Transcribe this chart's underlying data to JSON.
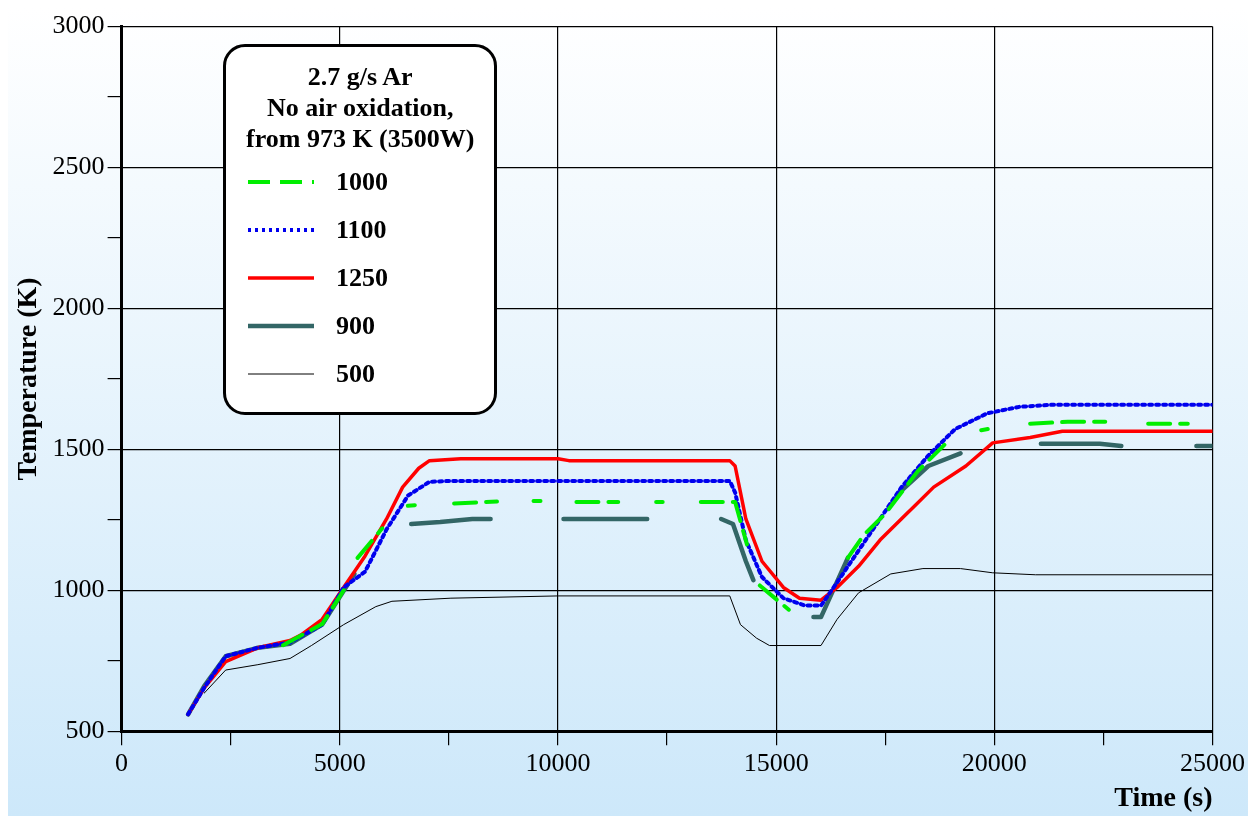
{
  "chart_data": {
    "type": "line",
    "xlabel": "Time (s)",
    "ylabel": "Temperature (K)",
    "legend_title": "2.7 g/s Ar\nNo air oxidation,\nfrom 973 K (3500W)",
    "legend": "top left",
    "grid": true,
    "marker": "none",
    "xlim": [
      0,
      25000
    ],
    "xticks": [
      0,
      {
        "value": 2500,
        "label": null
      },
      5000,
      {
        "value": 7500,
        "label": null
      },
      10000,
      {
        "value": 12500,
        "label": null
      },
      15000,
      {
        "value": 17500,
        "label": null
      },
      20000,
      {
        "value": 22500,
        "label": null
      },
      25000
    ],
    "ylim": [
      500,
      3000
    ],
    "yticks": [
      500,
      {
        "value": 750,
        "label": null
      },
      1000,
      {
        "value": 1250,
        "label": null
      },
      1500,
      {
        "value": 1750,
        "label": null
      },
      2000,
      {
        "value": 2250,
        "label": null
      },
      2500,
      {
        "value": 2750,
        "label": null
      },
      3000
    ],
    "series": [
      {
        "name": "1000",
        "color": "#00ee00",
        "line_style": "dashed",
        "x": [
          3700,
          4597,
          5088,
          5250,
          5408,
          5974,
          6300,
          6560,
          6720,
          7000,
          7620,
          8603,
          9000,
          9440,
          9600,
          9900,
          10423,
          11381,
          11800,
          12250,
          12400,
          12800,
          13274,
          14060,
          14331,
          14500,
          14626,
          15290,
          16000,
          16643,
          17012,
          17504,
          18241,
          18856,
          19300,
          19700,
          19850,
          20300,
          20821,
          21681,
          22542,
          23000,
          23525,
          24434
        ],
        "values": [
          805,
          880,
          1000,
          null,
          1115,
          1220,
          null,
          1300,
          1302,
          null,
          1308,
          1315,
          null,
          1317,
          1317,
          null,
          1313,
          1313,
          null,
          1313,
          1313,
          null,
          1313,
          1313,
          1163,
          null,
          1017,
          931,
          null,
          1115,
          1197,
          1272,
          1422,
          1516,
          null,
          1568,
          1572,
          null,
          1591,
          1598,
          1598,
          null,
          1591,
          1591
        ]
      },
      {
        "name": "1100",
        "color": "#0000ee",
        "line_style": "dotted",
        "x": [
          1524,
          1893,
          2385,
          3122,
          3860,
          4597,
          5088,
          5580,
          6072,
          6564,
          7056,
          7547,
          13937,
          14060,
          14306,
          14675,
          15167,
          15659,
          16028,
          16397,
          16889,
          17381,
          17873,
          18487,
          19102,
          19840,
          20577,
          21313,
          25000
        ],
        "values": [
          560,
          654,
          766,
          796,
          815,
          878,
          1010,
          1066,
          1216,
          1336,
          1385,
          1388,
          1388,
          1347,
          1178,
          1047,
          972,
          946,
          946,
          1028,
          1141,
          1253,
          1366,
          1478,
          1572,
          1628,
          1651,
          1658,
          1658
        ]
      },
      {
        "name": "1250",
        "color": "#ff0000",
        "line_style": "solid",
        "x": [
          1524,
          1893,
          2385,
          3122,
          3860,
          4105,
          4597,
          5088,
          5580,
          6072,
          6441,
          6810,
          7056,
          7770,
          10005,
          10250,
          13937,
          14060,
          14306,
          14675,
          15167,
          15536,
          16028,
          16397,
          16889,
          17381,
          17996,
          18610,
          19348,
          19963,
          20821,
          21559,
          25000
        ],
        "values": [
          560,
          654,
          747,
          796,
          822,
          841,
          897,
          1010,
          1122,
          1253,
          1366,
          1433,
          1460,
          1467,
          1467,
          1460,
          1460,
          1441,
          1253,
          1103,
          1010,
          972,
          965,
          1010,
          1085,
          1178,
          1272,
          1366,
          1441,
          1523,
          1542,
          1564,
          1564
        ]
      },
      {
        "name": "900",
        "color": "#336666",
        "line_style": "solid",
        "x": [
          1524,
          1893,
          2385,
          3122,
          3860,
          4597,
          5334,
          5900,
          6637,
          7302,
          8038,
          8456,
          9300,
          10127,
          12045,
          12900,
          13741,
          14011,
          14306,
          14478,
          15100,
          15855,
          16028,
          16643,
          17200,
          17823,
          18487,
          19225,
          20100,
          21067,
          22418,
          22910,
          23800,
          24631,
          25000
        ],
        "values": [
          560,
          660,
          766,
          796,
          810,
          878,
          1058,
          null,
          1235,
          1242,
          1253,
          1253,
          null,
          1253,
          1253,
          null,
          1253,
          1235,
          1103,
          1036,
          null,
          905,
          905,
          1115,
          null,
          1347,
          1441,
          1486,
          null,
          1520,
          1520,
          1512,
          null,
          1512,
          1512
        ]
      },
      {
        "name": "500",
        "color": "#000000",
        "line_style": "solid",
        "x": [
          1893,
          2385,
          3122,
          3860,
          4351,
          5088,
          5826,
          6195,
          7547,
          10005,
          13937,
          14183,
          14552,
          14847,
          16028,
          16397,
          16889,
          17627,
          18364,
          19225,
          19963,
          20946,
          25000
        ],
        "values": [
          635,
          717,
          736,
          758,
          804,
          878,
          942,
          961,
          972,
          980,
          980,
          878,
          830,
          804,
          804,
          897,
          991,
          1058,
          1077,
          1077,
          1062,
          1055,
          1055
        ]
      }
    ]
  }
}
